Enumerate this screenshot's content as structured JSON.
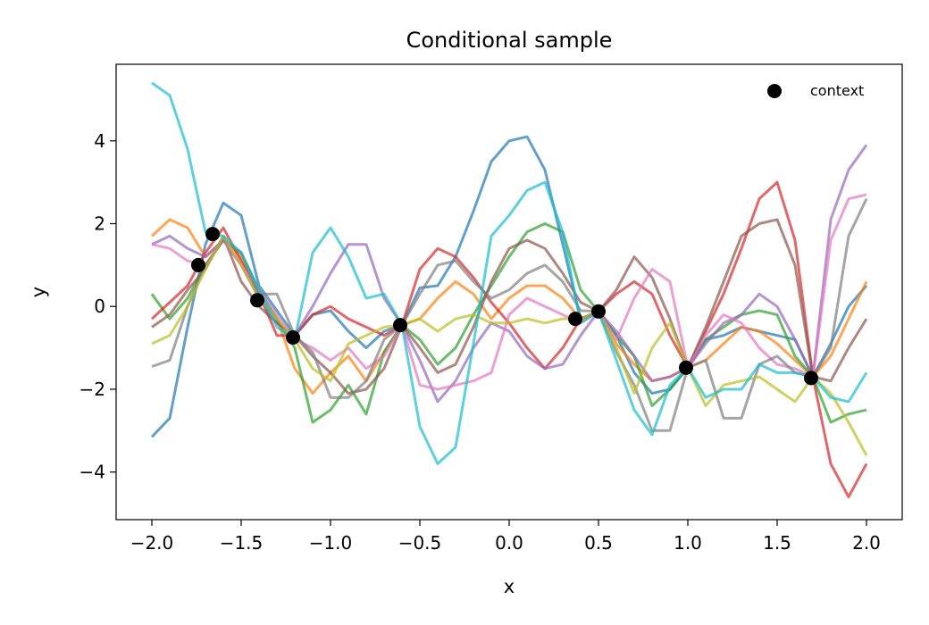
{
  "chart_data": {
    "type": "line",
    "title": "Conditional sample",
    "xlabel": "x",
    "ylabel": "y",
    "xlim": [
      -2.2,
      2.2
    ],
    "ylim": [
      -5.15,
      5.85
    ],
    "xticks": [
      -2.0,
      -1.5,
      -1.0,
      -0.5,
      0.0,
      0.5,
      1.0,
      1.5,
      2.0
    ],
    "xtick_labels": [
      "−2.0",
      "−1.5",
      "−1.0",
      "−0.5",
      "0.0",
      "0.5",
      "1.0",
      "1.5",
      "2.0"
    ],
    "yticks": [
      -4,
      -2,
      0,
      2,
      4
    ],
    "ytick_labels": [
      "−4",
      "−2",
      "0",
      "2",
      "4"
    ],
    "grid": false,
    "legend": {
      "position": "top-right",
      "entries": [
        "context"
      ]
    },
    "context_points": {
      "name": "context",
      "x": [
        -1.74,
        -1.66,
        -1.41,
        -1.21,
        -0.61,
        0.37,
        0.5,
        0.99,
        1.69
      ],
      "y": [
        1.0,
        1.75,
        0.15,
        -0.75,
        -0.45,
        -0.3,
        -0.12,
        -1.48,
        -1.73
      ]
    },
    "x": [
      -2.0,
      -1.9,
      -1.8,
      -1.7,
      -1.6,
      -1.5,
      -1.4,
      -1.3,
      -1.2,
      -1.1,
      -1.0,
      -0.9,
      -0.8,
      -0.7,
      -0.6,
      -0.5,
      -0.4,
      -0.3,
      -0.2,
      -0.1,
      0.0,
      0.1,
      0.2,
      0.3,
      0.4,
      0.5,
      0.6,
      0.7,
      0.8,
      0.9,
      1.0,
      1.1,
      1.2,
      1.3,
      1.4,
      1.5,
      1.6,
      1.7,
      1.8,
      1.9,
      2.0
    ],
    "series": [
      {
        "color": "#1f77b4",
        "values": [
          -3.15,
          -2.7,
          -0.5,
          1.5,
          2.5,
          2.2,
          0.5,
          -0.1,
          -0.7,
          -0.2,
          -0.1,
          -0.6,
          -1.0,
          -0.6,
          -0.45,
          0.45,
          0.5,
          1.2,
          2.3,
          3.5,
          4.0,
          4.1,
          3.3,
          1.5,
          -0.3,
          -0.12,
          -0.7,
          -1.6,
          -2.1,
          -2.0,
          -1.48,
          -0.8,
          -0.7,
          -0.5,
          -0.6,
          -0.7,
          -0.8,
          -1.7,
          -0.9,
          0.0,
          0.5
        ]
      },
      {
        "color": "#ff7f0e",
        "values": [
          1.7,
          2.1,
          1.9,
          1.2,
          1.6,
          1.2,
          0.2,
          -0.3,
          -1.5,
          -2.1,
          -1.6,
          -1.2,
          -1.8,
          -1.1,
          -0.45,
          -0.3,
          0.2,
          0.6,
          0.3,
          -0.3,
          0.2,
          0.5,
          0.5,
          0.2,
          -0.3,
          -0.12,
          -0.9,
          -1.4,
          -1.8,
          -1.7,
          -1.48,
          -1.3,
          -0.9,
          -0.5,
          -0.6,
          -0.9,
          -1.3,
          -1.7,
          -1.2,
          -0.3,
          0.6
        ]
      },
      {
        "color": "#2ca02c",
        "values": [
          0.3,
          -0.3,
          0.2,
          1.0,
          1.6,
          1.3,
          0.4,
          -0.3,
          -1.0,
          -2.8,
          -2.5,
          -1.9,
          -2.6,
          -1.1,
          -0.45,
          -0.8,
          -1.4,
          -1.0,
          -0.2,
          0.5,
          1.2,
          1.8,
          2.0,
          1.8,
          0.4,
          -0.12,
          -0.7,
          -1.2,
          -2.4,
          -2.0,
          -1.48,
          -0.8,
          -0.5,
          -0.2,
          -0.1,
          -0.2,
          -1.2,
          -1.7,
          -2.8,
          -2.6,
          -2.5
        ]
      },
      {
        "color": "#d62728",
        "values": [
          -0.3,
          0.1,
          0.5,
          1.3,
          1.9,
          1.1,
          0.3,
          -0.7,
          -0.7,
          -0.2,
          0.0,
          -0.3,
          -0.5,
          -0.7,
          -0.45,
          0.9,
          1.4,
          1.2,
          0.7,
          0.1,
          -0.4,
          -1.0,
          -1.5,
          -1.0,
          -0.3,
          -0.12,
          0.3,
          0.6,
          0.3,
          -0.7,
          -1.48,
          -0.6,
          0.3,
          1.4,
          2.6,
          3.0,
          1.6,
          -1.7,
          -3.8,
          -4.6,
          -3.8
        ]
      },
      {
        "color": "#9467bd",
        "values": [
          1.5,
          1.7,
          1.4,
          1.2,
          1.6,
          1.0,
          0.2,
          -0.4,
          -0.7,
          0.0,
          0.8,
          1.5,
          1.5,
          0.2,
          -0.45,
          -1.3,
          -2.3,
          -1.8,
          -1.0,
          -0.4,
          -0.6,
          -1.2,
          -1.5,
          -1.4,
          -0.7,
          -0.12,
          -0.6,
          -1.2,
          -1.8,
          -1.7,
          -1.48,
          -0.9,
          -0.4,
          -0.2,
          0.3,
          0.0,
          -0.8,
          -1.7,
          2.1,
          3.3,
          3.9
        ]
      },
      {
        "color": "#8c564b",
        "values": [
          -0.5,
          -0.2,
          0.4,
          0.9,
          1.7,
          0.6,
          0.0,
          -0.4,
          -0.7,
          -1.2,
          -1.6,
          -2.1,
          -2.0,
          -1.5,
          -0.45,
          -1.0,
          -1.6,
          -1.4,
          -0.5,
          0.6,
          1.4,
          1.6,
          1.4,
          0.8,
          0.1,
          -0.12,
          0.4,
          1.2,
          0.7,
          -0.3,
          -1.48,
          -0.5,
          0.6,
          1.7,
          2.0,
          2.1,
          1.0,
          -1.7,
          -1.8,
          -1.0,
          -0.3
        ]
      },
      {
        "color": "#e377c2",
        "values": [
          1.5,
          1.4,
          1.1,
          1.0,
          1.6,
          1.0,
          0.4,
          -0.2,
          -0.8,
          -1.0,
          -1.3,
          -1.0,
          -1.5,
          -1.2,
          -0.45,
          -1.9,
          -2.0,
          -1.9,
          -1.8,
          -1.6,
          -0.2,
          0.2,
          0.0,
          -0.2,
          -0.4,
          -0.12,
          -0.8,
          0.2,
          0.9,
          0.6,
          -1.48,
          -0.7,
          -0.2,
          -0.4,
          -1.0,
          -1.4,
          -1.5,
          -1.7,
          1.6,
          2.6,
          2.7
        ]
      },
      {
        "color": "#7f7f7f",
        "values": [
          -1.45,
          -1.3,
          0.0,
          1.0,
          1.6,
          1.3,
          0.3,
          0.3,
          -0.7,
          -1.1,
          -2.2,
          -2.2,
          -1.8,
          -0.8,
          -0.45,
          0.3,
          1.0,
          1.1,
          0.6,
          0.2,
          0.4,
          0.8,
          1.0,
          0.6,
          -0.1,
          -0.12,
          -1.1,
          -1.9,
          -3.0,
          -3.0,
          -1.48,
          -1.3,
          -2.7,
          -2.7,
          -1.4,
          -1.2,
          -1.6,
          -1.7,
          -1.0,
          1.7,
          2.6
        ]
      },
      {
        "color": "#bcbd22",
        "values": [
          -0.9,
          -0.7,
          0.0,
          0.9,
          1.7,
          1.0,
          0.2,
          -0.3,
          -0.8,
          -1.5,
          -1.8,
          -0.9,
          -0.7,
          -0.5,
          -0.45,
          -0.3,
          -0.6,
          -0.3,
          -0.2,
          -0.4,
          -0.4,
          -0.3,
          -0.4,
          -0.3,
          -0.3,
          -0.12,
          -1.0,
          -2.1,
          -1.0,
          -0.4,
          -1.48,
          -2.4,
          -1.9,
          -1.8,
          -1.7,
          -2.0,
          -2.3,
          -1.7,
          -2.1,
          -2.8,
          -3.6
        ]
      },
      {
        "color": "#17becf",
        "values": [
          5.4,
          5.1,
          3.8,
          1.8,
          1.7,
          1.3,
          0.4,
          -0.5,
          -0.8,
          1.3,
          1.9,
          1.2,
          0.2,
          0.3,
          -0.45,
          -2.9,
          -3.8,
          -3.4,
          -0.9,
          1.7,
          2.2,
          2.8,
          3.0,
          1.8,
          -0.4,
          -0.12,
          -1.3,
          -2.5,
          -3.1,
          -1.9,
          -1.48,
          -2.2,
          -2.0,
          -2.0,
          -1.4,
          -1.6,
          -1.6,
          -1.7,
          -2.2,
          -2.3,
          -1.6
        ]
      }
    ]
  }
}
